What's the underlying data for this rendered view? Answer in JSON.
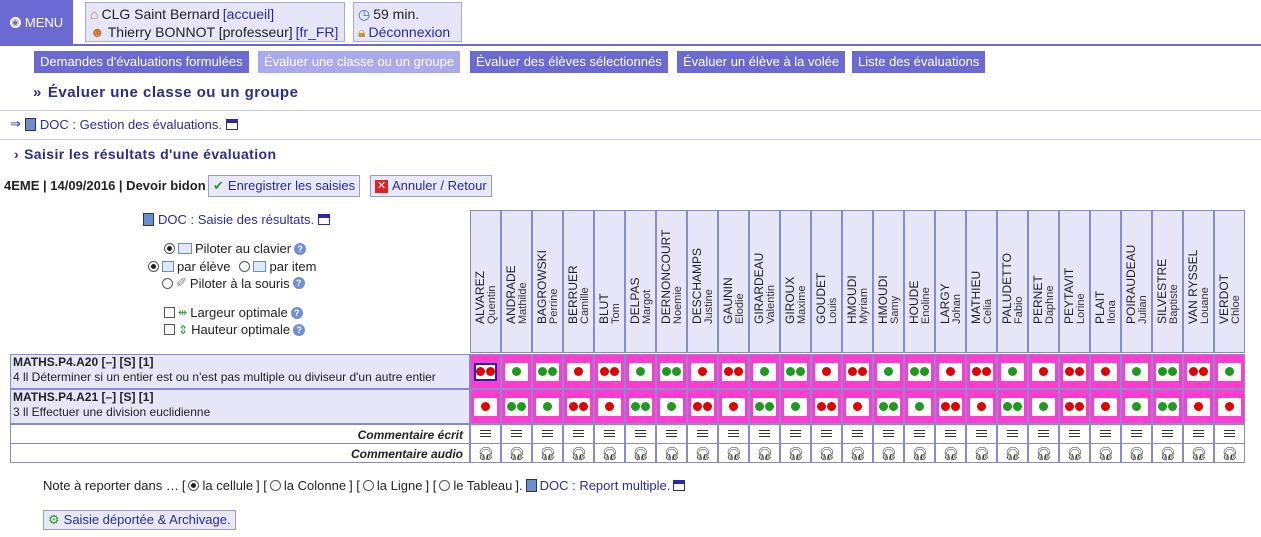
{
  "menu": {
    "label": "MENU"
  },
  "session": {
    "school": "CLG Saint Bernard",
    "school_link": "[accueil]",
    "user": "Thierry BONNOT [professeur]",
    "lang": "[fr_FR]",
    "time_left": "59 min.",
    "logout": "Déconnexion"
  },
  "tabs": [
    {
      "label": "Demandes d'évaluations formulées",
      "active": false
    },
    {
      "label": "Évaluer une classe ou un groupe",
      "active": true
    },
    {
      "label": "Évaluer des élèves sélectionnés",
      "active": false
    },
    {
      "label": "Évaluer un élève à la volée",
      "active": false
    },
    {
      "label": "Liste des évaluations",
      "active": false
    }
  ],
  "page_title": "Évaluer une classe ou un groupe",
  "doc_gestion": "DOC : Gestion des évaluations.",
  "section_title": "Saisir les résultats d'une évaluation",
  "eval_info": "4EME | 14/09/2016 | Devoir bidon",
  "buttons": {
    "save": "Enregistrer les saisies",
    "cancel": "Annuler / Retour"
  },
  "doc_saisie": "DOC : Saisie des résultats.",
  "controls": {
    "keyboard": "Piloter au clavier",
    "by_student": "par élève",
    "by_item": "par item",
    "mouse": "Piloter à la souris",
    "opt_width": "Largeur optimale",
    "opt_height": "Hauteur optimale"
  },
  "students": [
    {
      "last": "ALVAREZ",
      "first": "Quentin"
    },
    {
      "last": "ANDRADE",
      "first": "Mathilde"
    },
    {
      "last": "BAGROWSKI",
      "first": "Perrine"
    },
    {
      "last": "BERRUER",
      "first": "Camille"
    },
    {
      "last": "BLUT",
      "first": "Tom"
    },
    {
      "last": "DELPAS",
      "first": "Margot"
    },
    {
      "last": "DERNONCOURT",
      "first": "Noemie"
    },
    {
      "last": "DESCHAMPS",
      "first": "Justine"
    },
    {
      "last": "GAUNIN",
      "first": "Elodie"
    },
    {
      "last": "GIRARDEAU",
      "first": "Valentin"
    },
    {
      "last": "GIROUX",
      "first": "Maxime"
    },
    {
      "last": "GOUDET",
      "first": "Louis"
    },
    {
      "last": "HMOUDI",
      "first": "Myriam"
    },
    {
      "last": "HMOUDI",
      "first": "Samy"
    },
    {
      "last": "HOUDE",
      "first": "Enoline"
    },
    {
      "last": "LARGY",
      "first": "Johan"
    },
    {
      "last": "MATHIEU",
      "first": "Celia"
    },
    {
      "last": "PALUDETTO",
      "first": "Fabio"
    },
    {
      "last": "PERNET",
      "first": "Daphne"
    },
    {
      "last": "PEYTAVIT",
      "first": "Lorine"
    },
    {
      "last": "PLAIT",
      "first": "Ilona"
    },
    {
      "last": "POIRAUDEAU",
      "first": "Julian"
    },
    {
      "last": "SILVESTRE",
      "first": "Baptiste"
    },
    {
      "last": "VAN RYSSEL",
      "first": "Louane"
    },
    {
      "last": "VERDOT",
      "first": "Chloe"
    }
  ],
  "items": [
    {
      "code": "MATHS.P4.A20 [–] [S] [1]",
      "desc": "4 ll Déterminer si un entier est ou n'est pas multiple ou diviseur d'un autre entier",
      "results": [
        "rr",
        "g",
        "gg",
        "r",
        "rr",
        "g",
        "gg",
        "r",
        "rr",
        "g",
        "gg",
        "r",
        "rr",
        "g",
        "gg",
        "r",
        "rr",
        "g",
        "r",
        "rr",
        "r",
        "g",
        "gg",
        "rr",
        "g"
      ]
    },
    {
      "code": "MATHS.P4.A21 [–] [S] [1]",
      "desc": "3 ll Effectuer une division euclidienne",
      "results": [
        "r",
        "gg",
        "g",
        "rr",
        "r",
        "gg",
        "g",
        "rr",
        "r",
        "gg",
        "g",
        "rr",
        "r",
        "gg",
        "g",
        "rr",
        "r",
        "gg",
        "g",
        "rr",
        "r",
        "g",
        "gg",
        "r",
        "r"
      ]
    }
  ],
  "comment_written": "Commentaire écrit",
  "comment_audio": "Commentaire audio",
  "report": {
    "prefix": "Note à reporter dans …",
    "cell": "la cellule",
    "column": "la Colonne",
    "line": "la Ligne",
    "table": "le Tableau",
    "doc": "DOC : Report multiple."
  },
  "archive_button": "Saisie déportée & Archivage."
}
